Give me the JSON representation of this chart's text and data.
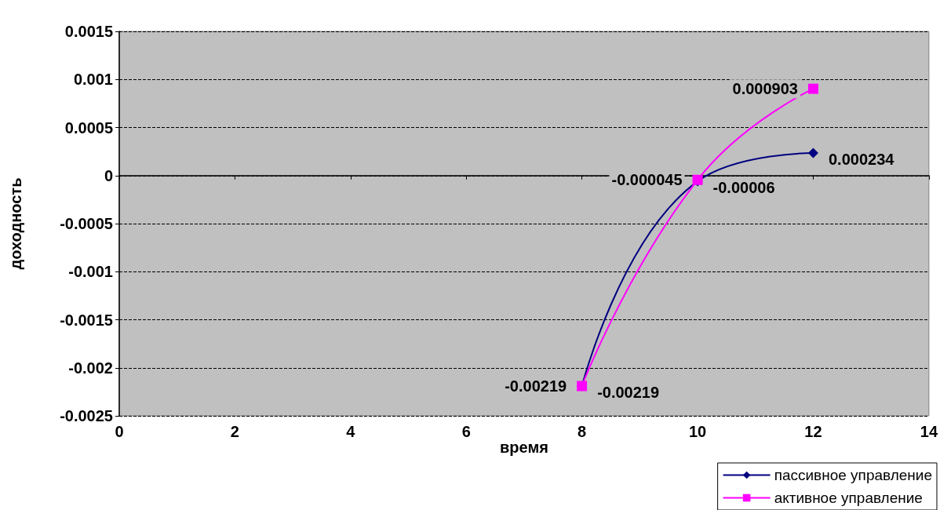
{
  "chart_data": {
    "type": "line",
    "xlabel": "время",
    "ylabel": "доходность",
    "x": [
      8,
      10,
      12
    ],
    "series": [
      {
        "name": "пассивное управление",
        "color": "#000080",
        "marker": "diamond",
        "values": [
          -0.00219,
          -6e-05,
          0.000234
        ],
        "value_labels": [
          "-0.00219",
          "-0.00006",
          "0.000234"
        ]
      },
      {
        "name": "активное управление",
        "color": "#ff00ff",
        "marker": "square",
        "values": [
          -0.00219,
          -4.5e-05,
          0.000903
        ],
        "value_labels": [
          "-0.00219",
          "-0.000045",
          "0.000903"
        ]
      }
    ],
    "xlim": [
      0,
      14
    ],
    "xticks": [
      0,
      2,
      4,
      6,
      8,
      10,
      12,
      14
    ],
    "ylim": [
      -0.0025,
      0.0015
    ],
    "yticks": [
      -0.0025,
      -0.002,
      -0.0015,
      -0.001,
      -0.0005,
      0,
      0.0005,
      0.001,
      0.0015
    ],
    "grid": "y",
    "legend": "bottom right",
    "data_labels": true
  }
}
